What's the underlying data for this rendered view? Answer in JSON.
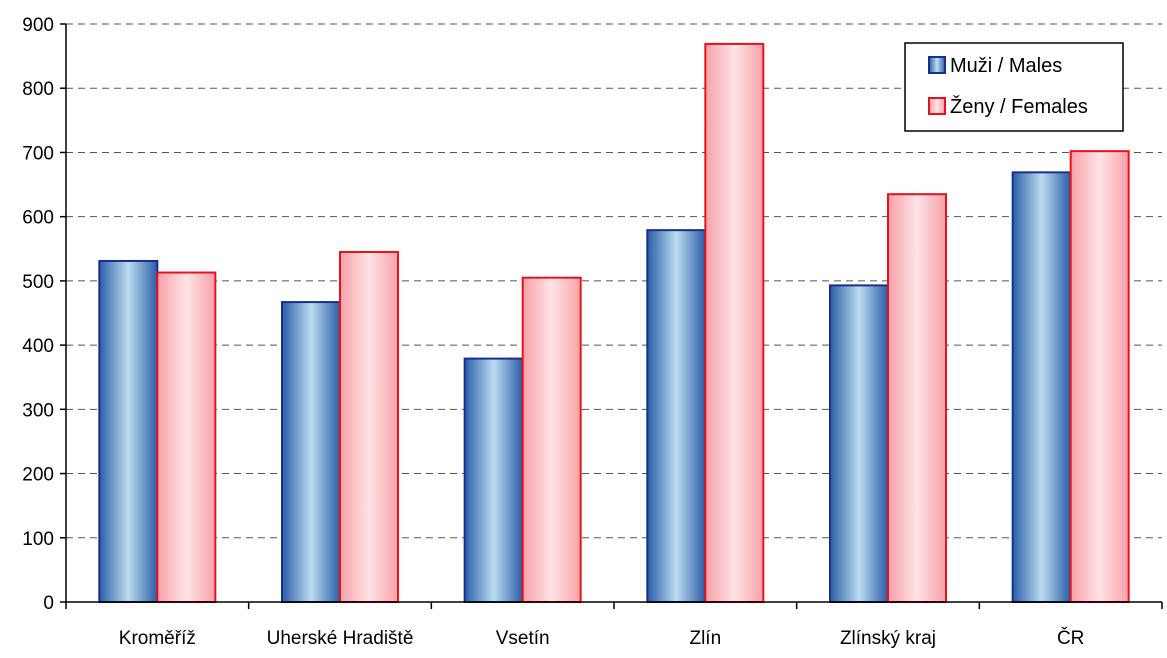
{
  "chart_data": {
    "type": "bar",
    "title": "",
    "xlabel": "",
    "ylabel": "",
    "ylim": [
      0,
      900
    ],
    "yticks": [
      0,
      100,
      200,
      300,
      400,
      500,
      600,
      700,
      800,
      900
    ],
    "grid": "horizontal-dashed",
    "legend_position": "top-right",
    "categories": [
      "Kroměříž",
      "Uherské Hradiště",
      "Vsetín",
      "Zlín",
      "Zlínský kraj",
      "ČR"
    ],
    "series": [
      {
        "name": "Muži / Males",
        "color": "#1f4e9a",
        "values": [
          531,
          467,
          379,
          579,
          493,
          669
        ]
      },
      {
        "name": "Ženy / Females",
        "color": "#e8121c",
        "values": [
          513,
          545,
          505,
          869,
          635,
          702
        ]
      }
    ]
  }
}
